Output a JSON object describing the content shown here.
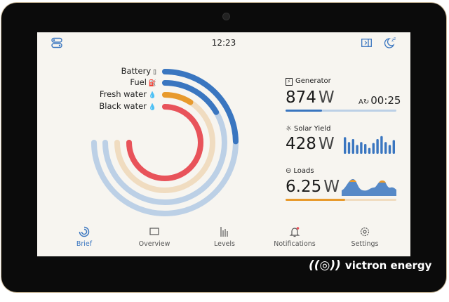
{
  "status_bar": {
    "time": "12:23",
    "icons": [
      "toggles-icon",
      "sidebar-toggle-icon",
      "sleep-moon-icon"
    ]
  },
  "gauges": [
    {
      "label": "Battery",
      "icon": "battery-icon",
      "level_pct": 33,
      "color": "#3a76c0",
      "track": "#bcd0e6"
    },
    {
      "label": "Fuel",
      "icon": "fuel-pump-icon",
      "level_pct": 22,
      "color": "#3a76c0",
      "track": "#bcd0e6"
    },
    {
      "label": "Fresh water",
      "icon": "water-drop-icon",
      "level_pct": 12,
      "color": "#e89a2c",
      "track": "#f0dcc0"
    },
    {
      "label": "Black water",
      "icon": "water-drop-icon",
      "level_pct": 100,
      "color": "#e8535a",
      "track": "#f2c5c5"
    }
  ],
  "widgets": {
    "generator": {
      "title": "Generator",
      "value": "874",
      "unit": "W",
      "runtime": "00:25",
      "progress_pct": 33
    },
    "solar": {
      "title": "Solar Yield",
      "value": "428",
      "unit": "W",
      "bars": [
        0.85,
        0.6,
        0.75,
        0.45,
        0.6,
        0.5,
        0.3,
        0.55,
        0.75,
        0.9,
        0.6,
        0.45,
        0.7
      ]
    },
    "loads": {
      "title": "Loads",
      "value": "6.25",
      "unit": "W",
      "progress_pct": 54
    }
  },
  "nav": [
    {
      "label": "Brief",
      "icon": "brief-icon",
      "active": true
    },
    {
      "label": "Overview",
      "icon": "overview-icon"
    },
    {
      "label": "Levels",
      "icon": "levels-icon"
    },
    {
      "label": "Notifications",
      "icon": "bell-icon"
    },
    {
      "label": "Settings",
      "icon": "gear-icon"
    }
  ],
  "brand": "victron energy",
  "colors": {
    "accent": "#3a76c0",
    "orange": "#e89a2c",
    "red": "#e8535a",
    "background": "#f7f5f0"
  }
}
